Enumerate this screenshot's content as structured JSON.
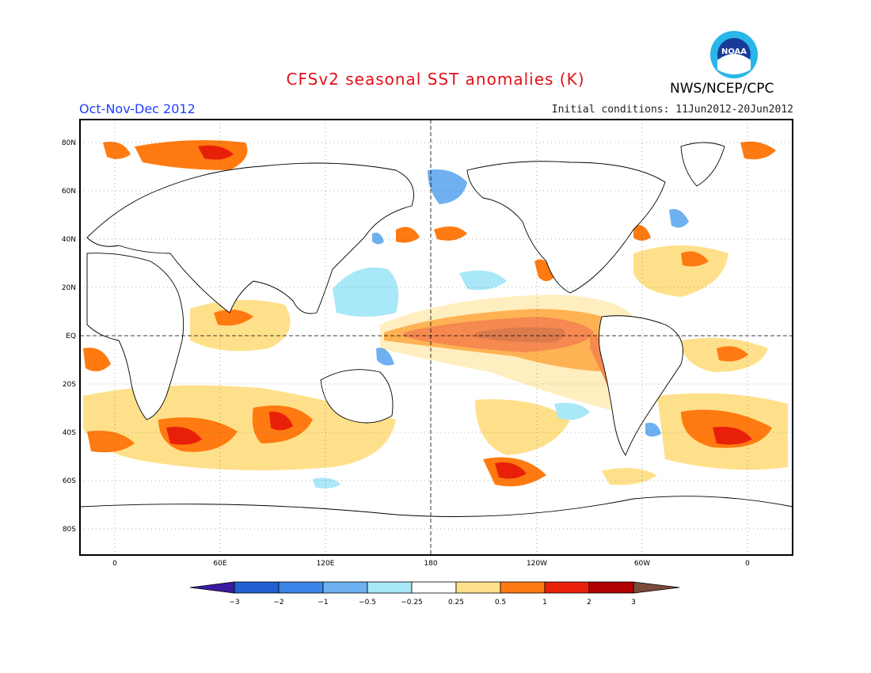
{
  "header": {
    "title": "CFSv2 seasonal SST anomalies (K)",
    "season": "Oct-Nov-Dec 2012",
    "initial_conditions": "Initial conditions: 11Jun2012-20Jun2012",
    "agency": "NWS/NCEP/CPC",
    "logo_text": "NOAA"
  },
  "map": {
    "lat_labels": [
      "80N",
      "60N",
      "40N",
      "20N",
      "EQ",
      "20S",
      "40S",
      "60S",
      "80S"
    ],
    "lon_labels": [
      "0",
      "60E",
      "120E",
      "180",
      "120W",
      "60W",
      "0"
    ]
  },
  "colorbar": {
    "labels": [
      "−3",
      "−2",
      "−1",
      "−0.5",
      "−0.25",
      "0.25",
      "0.5",
      "1",
      "2",
      "3"
    ],
    "colors": [
      "#3a1aa0",
      "#1f5fd0",
      "#3a85e8",
      "#6eb0f0",
      "#a8e8f8",
      "#ffffff",
      "#ffe08a",
      "#ff7a10",
      "#e8200a",
      "#b00000",
      "#7a4a3a"
    ]
  },
  "anomaly_colors": {
    "warm_025": "#ffe08a",
    "warm_05": "#ff7a10",
    "warm_1": "#e8200a",
    "warm_2": "#b00000",
    "cool_025": "#a8e8f8",
    "cool_05": "#6eb0f0",
    "cool_1": "#3a85e8"
  }
}
